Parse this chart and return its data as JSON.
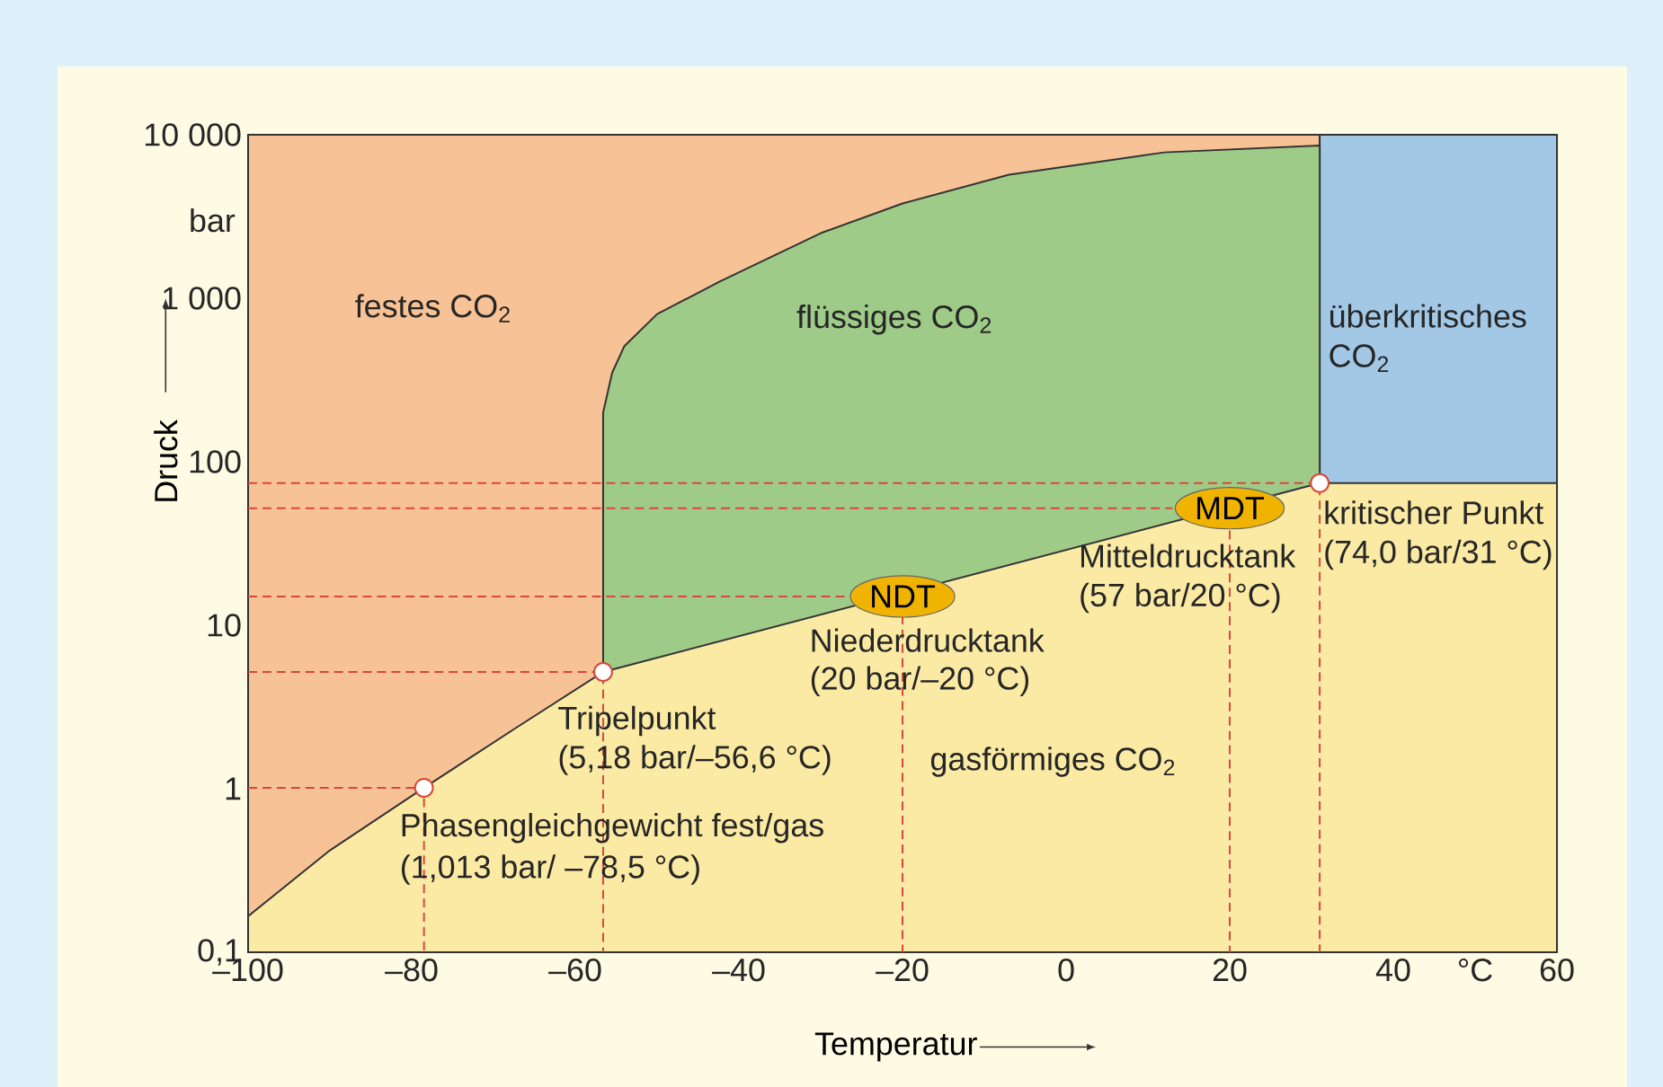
{
  "chart_data": {
    "type": "area",
    "log": "y",
    "xlabel": "Temperatur",
    "ylabel": "Druck",
    "xlim": [
      -100,
      60
    ],
    "ylim": [
      0.1,
      10000
    ],
    "xticks": [
      {
        "value": -100,
        "label": "–100"
      },
      {
        "value": -80,
        "label": "–80"
      },
      {
        "value": -60,
        "label": "–60"
      },
      {
        "value": -40,
        "label": "–40"
      },
      {
        "value": -20,
        "label": "–20"
      },
      0,
      20,
      40,
      {
        "value": 50,
        "label": "°C"
      },
      60
    ],
    "yticks": [
      {
        "value": 0.1,
        "label": "0,1"
      },
      1,
      10,
      100,
      {
        "value": 1000,
        "label": "1 000"
      },
      {
        "value": 10000,
        "label": "10 000"
      }
    ],
    "series": [
      {
        "color": "#f7c295",
        "x": [
          -100,
          31
        ],
        "values": [
          10000,
          10000
        ]
      },
      {
        "color": "#a2c8e6",
        "x": [
          31,
          60
        ],
        "values": [
          10000,
          10000
        ]
      },
      {
        "color": "#9fcb88",
        "x": [
          -56.6,
          -56.6,
          -55.5,
          -54,
          -50,
          -42.4,
          -30,
          -20,
          -7,
          12,
          31
        ],
        "values": [
          5.18,
          200,
          350,
          510,
          800,
          1260,
          2500,
          3800,
          5700,
          7800,
          8600
        ]
      },
      {
        "color": "#fbeaa4",
        "x": [
          -100,
          -90,
          -78.5,
          -67,
          -56.6,
          31,
          60
        ],
        "values": [
          0.166,
          0.42,
          1.013,
          2.4,
          5.18,
          74,
          74
        ]
      },
      {
        "type": "line",
        "color": "#d9473b",
        "line_style": "dashed",
        "x": [
          -100,
          -78.5,
          -78.5
        ],
        "values": [
          1.013,
          1.013,
          0.1
        ]
      },
      {
        "type": "line",
        "color": "#d9473b",
        "line_style": "dashed",
        "x": [
          -100,
          -56.6,
          -56.6
        ],
        "values": [
          5.18,
          5.18,
          0.1
        ]
      },
      {
        "type": "line",
        "color": "#d9473b",
        "line_style": "dashed",
        "x": [
          -100,
          -27
        ],
        "values": [
          15,
          15
        ]
      },
      {
        "type": "line",
        "color": "#d9473b",
        "line_style": "dashed",
        "x": [
          -20,
          -20
        ],
        "values": [
          11.5,
          0.1
        ]
      },
      {
        "type": "line",
        "color": "#d9473b",
        "line_style": "dashed",
        "x": [
          -100,
          13
        ],
        "values": [
          52,
          52
        ]
      },
      {
        "type": "line",
        "color": "#d9473b",
        "line_style": "dashed",
        "x": [
          20,
          20
        ],
        "values": [
          38,
          0.1
        ]
      },
      {
        "type": "line",
        "color": "#d9473b",
        "line_style": "dashed",
        "x": [
          -100,
          31,
          31
        ],
        "values": [
          74,
          74,
          0.1
        ]
      },
      {
        "type": "scatter",
        "color": "#d9473b",
        "marker": "circle",
        "x": [
          -78.5,
          -56.6,
          31
        ],
        "values": [
          1.013,
          5.18,
          74
        ]
      }
    ],
    "annotations": [
      "bar",
      "festes CO$_{2}$",
      "flüssiges CO$_{2}$",
      "überkritisches",
      "CO$_{2}$",
      "kritischer Punkt",
      "(74,0 bar/31 °C)",
      "Mitteldrucktank",
      "(57 bar/20 °C)",
      "Niederdrucktank",
      "(20 bar/–20 °C)",
      "Tripelpunkt",
      "(5,18 bar/–56,6 °C)",
      "gasförmiges CO$_{2}$",
      "Phasengleichgewicht fest/gas",
      "(1,013 bar/ –78,5 °C)",
      {
        "text": "NDT",
        "x": -20,
        "y": 15
      },
      {
        "text": "MDT",
        "x": 20,
        "y": 52
      }
    ]
  }
}
